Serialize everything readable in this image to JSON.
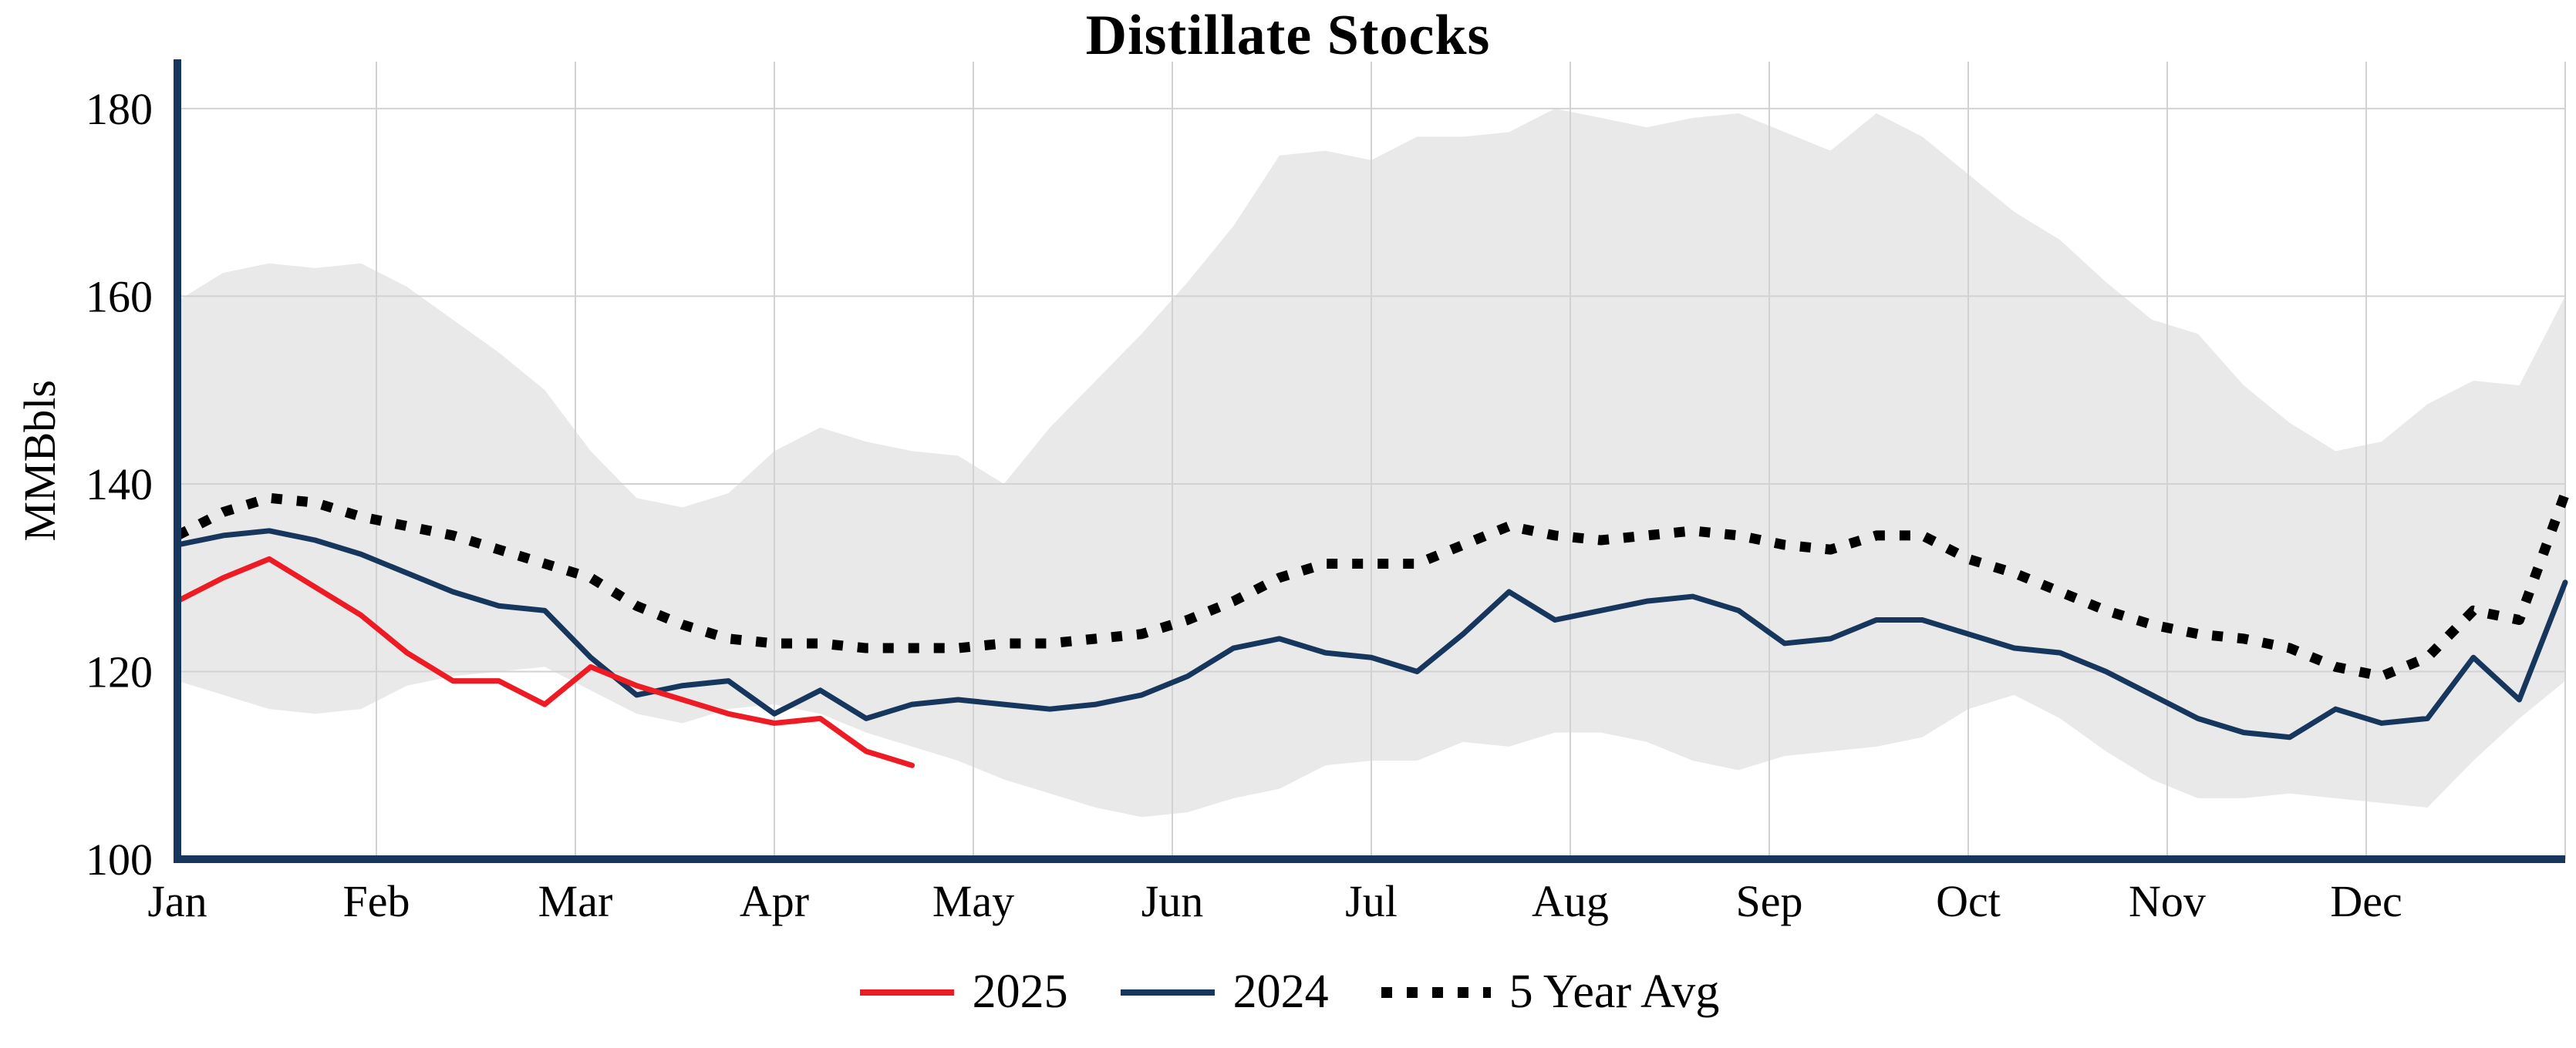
{
  "title": "Distillate Stocks",
  "y_axis_label": "MMBbls",
  "legend": {
    "items": [
      {
        "label": "2025",
        "color": "#ed1c24",
        "style": "solid"
      },
      {
        "label": "2024",
        "color": "#17365d",
        "style": "solid"
      },
      {
        "label": "5 Year Avg",
        "color": "#000000",
        "style": "dotted"
      }
    ]
  },
  "chart_data": {
    "type": "line",
    "title": "Distillate Stocks",
    "xlabel": "",
    "ylabel": "MMBbls",
    "ylim": [
      100,
      185
    ],
    "yticks": [
      100,
      120,
      140,
      160,
      180
    ],
    "months": [
      "Jan",
      "Feb",
      "Mar",
      "Apr",
      "May",
      "Jun",
      "Jul",
      "Aug",
      "Sep",
      "Oct",
      "Nov",
      "Dec"
    ],
    "x_note": "weekly observations; x position = index * 12/52 month units, Jan tick = 0",
    "grid": true,
    "legend_position": "bottom",
    "colors": {
      "axis": "#17365d",
      "grid": "#d2d2d2"
    },
    "band": {
      "name": "5 Year Range",
      "fill": "#e9e9e9",
      "upper": [
        159.5,
        162.5,
        163.5,
        163,
        163.5,
        161,
        157.5,
        154,
        150,
        143.5,
        138.5,
        137.5,
        139,
        143.5,
        146,
        144.5,
        143.5,
        143,
        140,
        146,
        151,
        156,
        161.5,
        167.5,
        175,
        175.5,
        174.5,
        177,
        177,
        177.5,
        180,
        179,
        178,
        179,
        179.5,
        177.5,
        175.5,
        179.5,
        177,
        173,
        169,
        166,
        161.5,
        157.5,
        156,
        150.5,
        146.5,
        143.5,
        144.5,
        148.5,
        151,
        150.5,
        160
      ],
      "lower": [
        119,
        117.5,
        116,
        115.5,
        116,
        118.5,
        119.5,
        120,
        120.5,
        118,
        115.5,
        114.5,
        116,
        116.5,
        115.5,
        113.5,
        112,
        110.5,
        108.5,
        107,
        105.5,
        104.5,
        105,
        106.5,
        107.5,
        110,
        110.5,
        110.5,
        112.5,
        112,
        113.5,
        113.5,
        112.5,
        110.5,
        109.5,
        111,
        111.5,
        112,
        113,
        116,
        117.5,
        115,
        111.5,
        108.5,
        106.5,
        106.5,
        107,
        106.5,
        106,
        105.5,
        110.5,
        115,
        119
      ]
    },
    "series": [
      {
        "name": "5 Year Avg",
        "color": "#000000",
        "style": "dotted",
        "width": 13,
        "values": [
          134.5,
          137,
          138.5,
          138,
          136.5,
          135.5,
          134.5,
          133,
          131.5,
          130,
          127,
          125,
          123.5,
          123,
          123,
          122.5,
          122.5,
          122.5,
          123,
          123,
          123.5,
          124,
          125.5,
          127.5,
          130,
          131.5,
          131.5,
          131.5,
          133.5,
          135.5,
          134.5,
          134,
          134.5,
          135,
          134.5,
          133.5,
          133,
          134.5,
          134.5,
          132,
          130.5,
          128.5,
          126.5,
          125,
          124,
          123.5,
          122.5,
          120.5,
          119.5,
          121.5,
          126.5,
          125.5,
          139
        ]
      },
      {
        "name": "2024",
        "color": "#17365d",
        "style": "solid",
        "width": 7,
        "values": [
          133.5,
          134.5,
          135,
          134,
          132.5,
          130.5,
          128.5,
          127,
          126.5,
          121.5,
          117.5,
          118.5,
          119,
          115.5,
          118,
          115,
          116.5,
          117,
          116.5,
          116,
          116.5,
          117.5,
          119.5,
          122.5,
          123.5,
          122,
          121.5,
          120,
          124,
          128.5,
          125.5,
          126.5,
          127.5,
          128,
          126.5,
          123,
          123.5,
          125.5,
          125.5,
          124,
          122.5,
          122,
          120,
          117.5,
          115,
          113.5,
          113,
          116,
          114.5,
          115,
          121.5,
          117,
          129.5
        ]
      },
      {
        "name": "2025",
        "color": "#ed1c24",
        "style": "solid",
        "width": 7,
        "values": [
          127.5,
          130,
          132,
          129,
          126,
          122,
          119,
          119,
          116.5,
          120.5,
          118.5,
          117,
          115.5,
          114.5,
          115,
          111.5,
          110
        ]
      }
    ]
  }
}
